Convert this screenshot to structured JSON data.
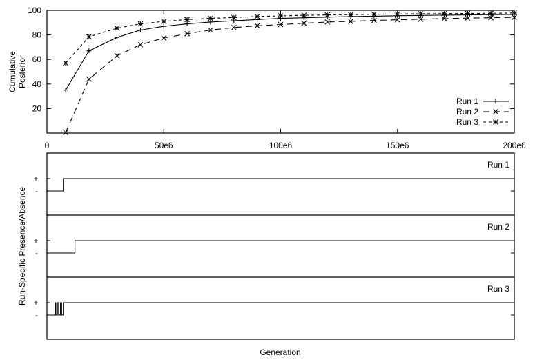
{
  "chart_data": [
    {
      "type": "line",
      "title": "",
      "xlabel": "",
      "ylabel_lines": [
        "Cumulative",
        "Posterior"
      ],
      "xlim": [
        0,
        200000000
      ],
      "ylim": [
        0,
        100
      ],
      "x_ticks": [
        {
          "value": 0,
          "label": "0"
        },
        {
          "value": 50000000,
          "label": "50e6"
        },
        {
          "value": 100000000,
          "label": "100e6"
        },
        {
          "value": 150000000,
          "label": "150e6"
        },
        {
          "value": 200000000,
          "label": "200e6"
        }
      ],
      "y_ticks": [
        {
          "value": 20,
          "label": "20"
        },
        {
          "value": 40,
          "label": "40"
        },
        {
          "value": 60,
          "label": "60"
        },
        {
          "value": 80,
          "label": "80"
        },
        {
          "value": 100,
          "label": "100"
        }
      ],
      "grid": false,
      "legend_position": "bottom-right",
      "x": [
        8000000,
        18000000,
        30000000,
        40000000,
        50000000,
        60000000,
        70000000,
        80000000,
        90000000,
        100000000,
        110000000,
        120000000,
        130000000,
        140000000,
        150000000,
        160000000,
        170000000,
        180000000,
        190000000,
        200000000
      ],
      "series": [
        {
          "name": "Run 1",
          "marker": "plus",
          "dash": "solid",
          "values": [
            35,
            67,
            78,
            84,
            87,
            89,
            90.5,
            91.5,
            92.5,
            93.5,
            94,
            94.5,
            95,
            95.3,
            95.6,
            95.9,
            96.1,
            96.3,
            96.5,
            96.7
          ]
        },
        {
          "name": "Run 2",
          "marker": "cross",
          "dash": "long",
          "values": [
            0.5,
            44,
            63,
            72,
            77.5,
            81,
            84,
            86,
            87.5,
            88.5,
            89.5,
            90.5,
            91,
            91.8,
            92.3,
            92.8,
            93.3,
            93.7,
            94,
            94.3
          ]
        },
        {
          "name": "Run 3",
          "marker": "star",
          "dash": "short",
          "values": [
            57,
            78.5,
            85.5,
            89,
            91,
            92.5,
            93.5,
            94.2,
            95,
            95.5,
            96,
            96.3,
            96.5,
            96.8,
            97,
            97.2,
            97.3,
            97.5,
            97.6,
            97.8
          ]
        }
      ]
    },
    {
      "type": "line",
      "title": "",
      "xlabel": "Generation",
      "ylabel": "Run-Specific Presence/Absence",
      "xlim": [
        0,
        200000000
      ],
      "state_labels": {
        "present": "+",
        "absent": "-"
      },
      "panels": [
        {
          "name": "Run 1",
          "steps": [
            [
              0,
              0
            ],
            [
              7000000,
              0
            ],
            [
              7000000,
              1
            ],
            [
              200000000,
              1
            ]
          ]
        },
        {
          "name": "Run 2",
          "steps": [
            [
              0,
              0
            ],
            [
              12000000,
              0
            ],
            [
              12000000,
              1
            ],
            [
              200000000,
              1
            ]
          ]
        },
        {
          "name": "Run 3",
          "steps": [
            [
              0,
              0
            ],
            [
              3500000,
              0
            ],
            [
              3500000,
              1
            ],
            [
              3800000,
              1
            ],
            [
              3800000,
              0
            ],
            [
              4500000,
              0
            ],
            [
              4500000,
              1
            ],
            [
              5000000,
              1
            ],
            [
              5000000,
              0
            ],
            [
              5800000,
              0
            ],
            [
              5800000,
              1
            ],
            [
              6300000,
              1
            ],
            [
              6300000,
              0
            ],
            [
              7000000,
              0
            ],
            [
              7000000,
              1
            ],
            [
              200000000,
              1
            ]
          ]
        }
      ]
    }
  ]
}
